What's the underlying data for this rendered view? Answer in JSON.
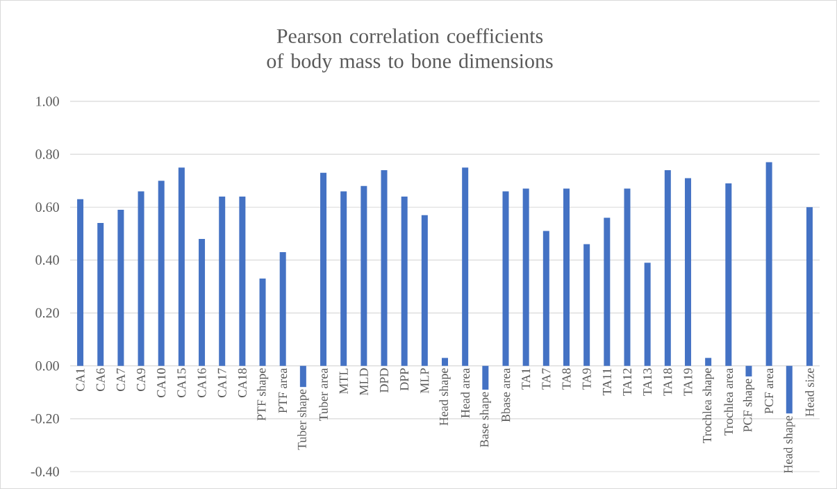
{
  "chart_data": {
    "type": "bar",
    "title": "Pearson correlation coefficients of body mass to bone dimensions",
    "categories": [
      "CA1",
      "CA6",
      "CA7",
      "CA9",
      "CA10",
      "CA15",
      "CA16",
      "CA17",
      "CA18",
      "PTF shape",
      "PTF area",
      "Tuber shape",
      "Tuber area",
      "MTL",
      "MLD",
      "DPD",
      "DPP",
      "MLP",
      "Head shape",
      "Head area",
      "Base shape",
      "Bbase area",
      "TA1",
      "TA7",
      "TA8",
      "TA9",
      "TA11",
      "TA12",
      "TA13",
      "TA18",
      "TA19",
      "Trochlea shape",
      "Trochlea area",
      "PCF shape",
      "PCF area",
      "Head shape",
      "Head size"
    ],
    "values": [
      0.63,
      0.54,
      0.59,
      0.66,
      0.7,
      0.75,
      0.48,
      0.64,
      0.64,
      0.33,
      0.43,
      -0.08,
      0.73,
      0.66,
      0.68,
      0.74,
      0.64,
      0.57,
      0.03,
      0.75,
      -0.09,
      0.66,
      0.67,
      0.51,
      0.67,
      0.46,
      0.56,
      0.67,
      0.39,
      0.74,
      0.71,
      0.03,
      0.69,
      -0.04,
      0.77,
      -0.18,
      0.6
    ],
    "color": "#4472c4",
    "ylim": [
      -0.4,
      1.0
    ],
    "yticks": [
      {
        "value": -0.4,
        "label": "-0.40"
      },
      {
        "value": -0.2,
        "label": "-0.20"
      },
      {
        "value": 0,
        "label": "0.00"
      },
      {
        "value": 0.2,
        "label": "0.20"
      },
      {
        "value": 0.4,
        "label": "0.40"
      },
      {
        "value": 0.6,
        "label": "0.60"
      },
      {
        "value": 0.8,
        "label": "0.80"
      },
      {
        "value": 1.0,
        "label": "1.00"
      }
    ],
    "grid": "y"
  }
}
